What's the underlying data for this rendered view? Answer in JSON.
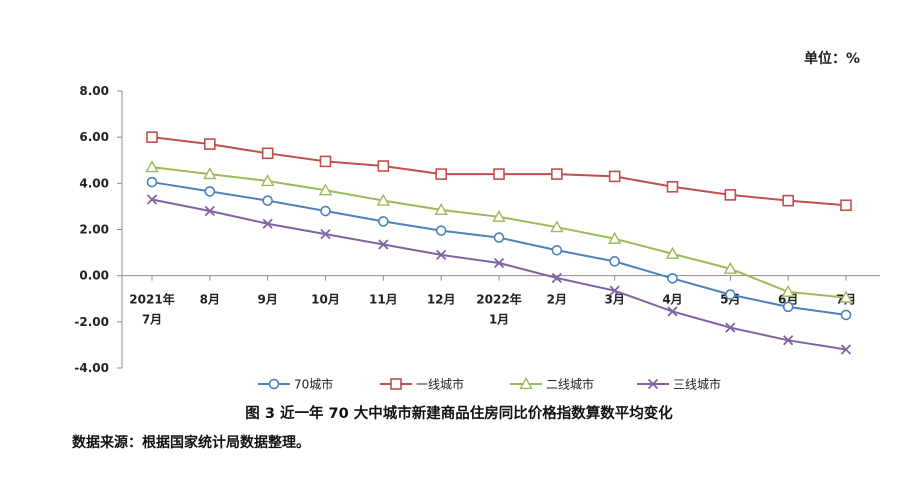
{
  "unit": "单位：%",
  "caption": "图 3    近一年 70 大中城市新建商品住房同比价格指数算数平均变化",
  "source": "数据来源：根据国家统计局数据整理。",
  "chart_data": {
    "type": "line",
    "categories": [
      [
        "2021年",
        "7月"
      ],
      [
        "8月"
      ],
      [
        "9月"
      ],
      [
        "10月"
      ],
      [
        "11月"
      ],
      [
        "12月"
      ],
      [
        "2022年",
        "1月"
      ],
      [
        "2月"
      ],
      [
        "3月"
      ],
      [
        "4月"
      ],
      [
        "5月"
      ],
      [
        "6月"
      ],
      [
        "7月"
      ]
    ],
    "ylim": [
      -4,
      8
    ],
    "yticks": [
      "8.00",
      "6.00",
      "4.00",
      "2.00",
      "0.00",
      "-2.00",
      "-4.00"
    ],
    "ytick_values": [
      8,
      6,
      4,
      2,
      0,
      -2,
      -4
    ],
    "legend_position": "bottom",
    "series": [
      {
        "name": "70城市",
        "color": "#4f81bd",
        "marker": "circle",
        "values": [
          4.05,
          3.65,
          3.25,
          2.8,
          2.35,
          1.95,
          1.65,
          1.1,
          0.62,
          -0.12,
          -0.82,
          -1.35,
          -1.7
        ]
      },
      {
        "name": "一线城市",
        "color": "#c0504d",
        "marker": "square",
        "values": [
          6.0,
          5.7,
          5.3,
          4.95,
          4.75,
          4.4,
          4.4,
          4.4,
          4.3,
          3.85,
          3.5,
          3.25,
          3.05
        ]
      },
      {
        "name": "二线城市",
        "color": "#9bbb59",
        "marker": "triangle",
        "values": [
          4.7,
          4.4,
          4.1,
          3.7,
          3.25,
          2.85,
          2.55,
          2.1,
          1.6,
          0.95,
          0.3,
          -0.7,
          -0.95
        ]
      },
      {
        "name": "三线城市",
        "color": "#8064a2",
        "marker": "x",
        "values": [
          3.3,
          2.8,
          2.25,
          1.8,
          1.35,
          0.9,
          0.55,
          -0.1,
          -0.65,
          -1.55,
          -2.25,
          -2.8,
          -3.2
        ]
      }
    ]
  }
}
